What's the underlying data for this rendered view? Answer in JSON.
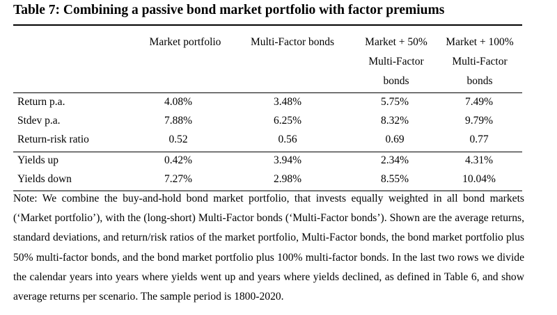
{
  "title": "Table 7: Combining a passive bond market portfolio with factor premiums",
  "headers": [
    [
      "Market portfolio"
    ],
    [
      "Multi-Factor bonds"
    ],
    [
      "Market + 50%",
      "Multi-Factor",
      "bonds"
    ],
    [
      "Market + 100%",
      "Multi-Factor",
      "bonds"
    ]
  ],
  "rows": [
    {
      "label": "Return p.a.",
      "values": [
        "4.08%",
        "3.48%",
        "5.75%",
        "7.49%"
      ]
    },
    {
      "label": "Stdev p.a.",
      "values": [
        "7.88%",
        "6.25%",
        "8.32%",
        "9.79%"
      ]
    },
    {
      "label": "Return-risk ratio",
      "values": [
        "0.52",
        "0.56",
        "0.69",
        "0.77"
      ]
    },
    {
      "label": "Yields up",
      "values": [
        "0.42%",
        "3.94%",
        "2.34%",
        "4.31%"
      ]
    },
    {
      "label": "Yields down",
      "values": [
        "7.27%",
        "2.98%",
        "8.55%",
        "10.04%"
      ]
    }
  ],
  "note": "Note: We combine the buy-and-hold bond market portfolio, that invests equally weighted in all bond markets (‘Market portfolio’), with the (long-short) Multi-Factor bonds (‘Multi-Factor bonds’). Shown are the average returns, standard deviations, and return/risk ratios of the market portfolio, Multi-Factor bonds, the bond market portfolio plus 50% multi-factor bonds, and the bond market portfolio plus 100% multi-factor bonds. In the last two rows we divide the calendar years into years where yields went up and years where yields declined, as defined in Table 6, and show average returns per scenario. The sample period is 1800-2020."
}
